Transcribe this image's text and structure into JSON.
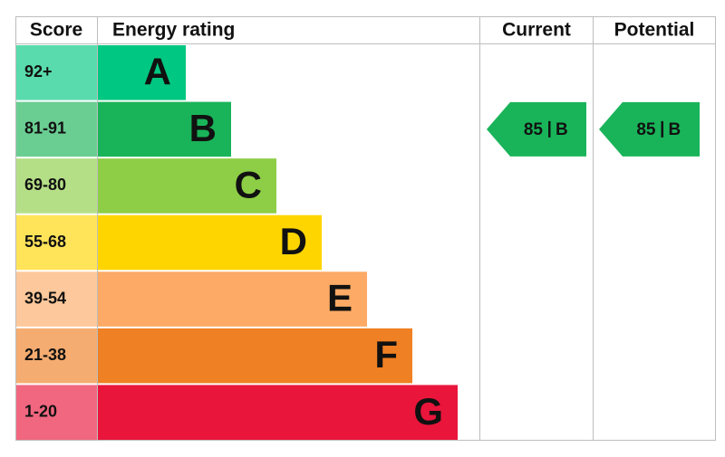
{
  "header": {
    "score": "Score",
    "rating": "Energy rating",
    "current": "Current",
    "potential": "Potential"
  },
  "bands": [
    {
      "score": "92+",
      "rating": "A",
      "color": "#00c781"
    },
    {
      "score": "81-91",
      "rating": "B",
      "color": "#19b459"
    },
    {
      "score": "69-80",
      "rating": "C",
      "color": "#8dce46"
    },
    {
      "score": "55-68",
      "rating": "D",
      "color": "#ffd500"
    },
    {
      "score": "39-54",
      "rating": "E",
      "color": "#fcaa65"
    },
    {
      "score": "21-38",
      "rating": "F",
      "color": "#ef8023"
    },
    {
      "score": "1-20",
      "rating": "G",
      "color": "#e9153b"
    }
  ],
  "current": {
    "score": 85,
    "rating": "B"
  },
  "potential": {
    "score": 85,
    "rating": "B"
  }
}
